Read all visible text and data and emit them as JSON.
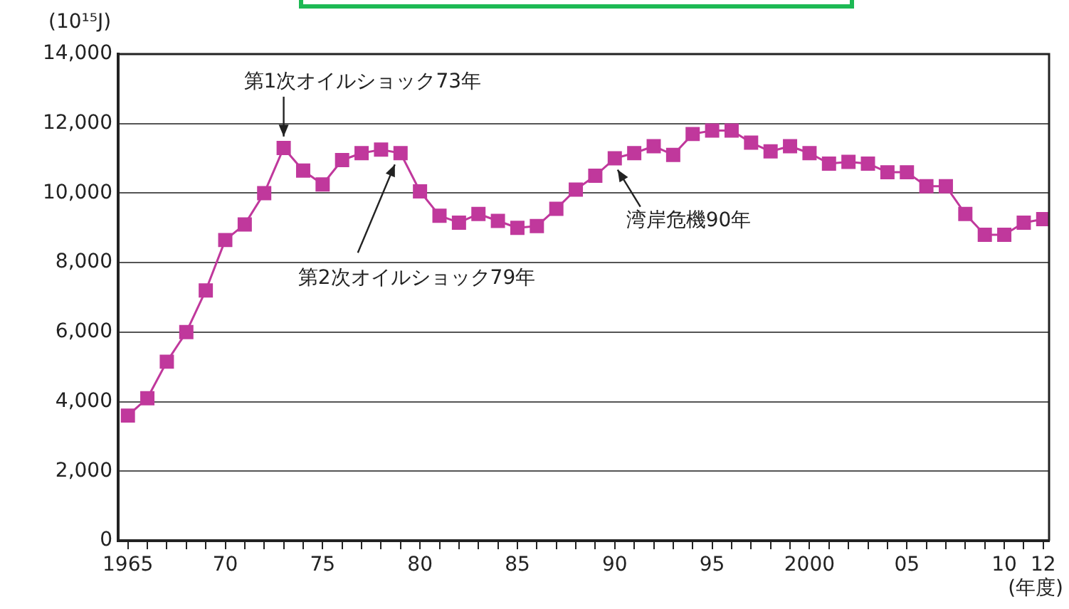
{
  "chart_data": {
    "type": "line",
    "ylabel": "(10¹⁵J)",
    "xlabel": "(年度)",
    "x": [
      1965,
      1966,
      1967,
      1968,
      1969,
      1970,
      1971,
      1972,
      1973,
      1974,
      1975,
      1976,
      1977,
      1978,
      1979,
      1980,
      1981,
      1982,
      1983,
      1984,
      1985,
      1986,
      1987,
      1988,
      1989,
      1990,
      1991,
      1992,
      1993,
      1994,
      1995,
      1996,
      1997,
      1998,
      1999,
      2000,
      2001,
      2002,
      2003,
      2004,
      2005,
      2006,
      2007,
      2008,
      2009,
      2010,
      2011,
      2012
    ],
    "series": [
      {
        "color": "#c0389c",
        "values": [
          3600,
          4100,
          5150,
          6000,
          7200,
          8650,
          9100,
          10000,
          11300,
          10650,
          10250,
          10950,
          11150,
          11250,
          11150,
          10050,
          9350,
          9150,
          9400,
          9200,
          9000,
          9050,
          9550,
          10100,
          10500,
          11000,
          11150,
          11350,
          11100,
          11700,
          11800,
          11800,
          11450,
          11200,
          11350,
          11150,
          10850,
          10900,
          10850,
          10600,
          10600,
          10200,
          10200,
          9400,
          8800,
          8800,
          9150,
          9250
        ]
      }
    ],
    "xlim": [
      1964.5,
      2012.3
    ],
    "xticks": [
      {
        "value": 1965,
        "label": "1965"
      },
      {
        "value": 1966,
        "label": null
      },
      {
        "value": 1967,
        "label": null
      },
      {
        "value": 1968,
        "label": null
      },
      {
        "value": 1969,
        "label": null
      },
      {
        "value": 1970,
        "label": "70"
      },
      {
        "value": 1971,
        "label": null
      },
      {
        "value": 1972,
        "label": null
      },
      {
        "value": 1973,
        "label": null
      },
      {
        "value": 1974,
        "label": null
      },
      {
        "value": 1975,
        "label": "75"
      },
      {
        "value": 1976,
        "label": null
      },
      {
        "value": 1977,
        "label": null
      },
      {
        "value": 1978,
        "label": null
      },
      {
        "value": 1979,
        "label": null
      },
      {
        "value": 1980,
        "label": "80"
      },
      {
        "value": 1981,
        "label": null
      },
      {
        "value": 1982,
        "label": null
      },
      {
        "value": 1983,
        "label": null
      },
      {
        "value": 1984,
        "label": null
      },
      {
        "value": 1985,
        "label": "85"
      },
      {
        "value": 1986,
        "label": null
      },
      {
        "value": 1987,
        "label": null
      },
      {
        "value": 1988,
        "label": null
      },
      {
        "value": 1989,
        "label": null
      },
      {
        "value": 1990,
        "label": "90"
      },
      {
        "value": 1991,
        "label": null
      },
      {
        "value": 1992,
        "label": null
      },
      {
        "value": 1993,
        "label": null
      },
      {
        "value": 1994,
        "label": null
      },
      {
        "value": 1995,
        "label": "95"
      },
      {
        "value": 1996,
        "label": null
      },
      {
        "value": 1997,
        "label": null
      },
      {
        "value": 1998,
        "label": null
      },
      {
        "value": 1999,
        "label": null
      },
      {
        "value": 2000,
        "label": "2000"
      },
      {
        "value": 2001,
        "label": null
      },
      {
        "value": 2002,
        "label": null
      },
      {
        "value": 2003,
        "label": null
      },
      {
        "value": 2004,
        "label": null
      },
      {
        "value": 2005,
        "label": "05"
      },
      {
        "value": 2006,
        "label": null
      },
      {
        "value": 2007,
        "label": null
      },
      {
        "value": 2008,
        "label": null
      },
      {
        "value": 2009,
        "label": null
      },
      {
        "value": 2010,
        "label": "10"
      },
      {
        "value": 2011,
        "label": null
      },
      {
        "value": 2012,
        "label": "12"
      }
    ],
    "ylim": [
      0,
      14000
    ],
    "yticks": [
      0,
      {
        "value": 2000,
        "label": "2,000"
      },
      {
        "value": 4000,
        "label": "4,000"
      },
      {
        "value": 6000,
        "label": "6,000"
      },
      {
        "value": 8000,
        "label": "8,000"
      },
      {
        "value": 10000,
        "label": "10,000"
      },
      {
        "value": 12000,
        "label": "12,000"
      },
      {
        "value": 14000,
        "label": "14,000"
      }
    ],
    "grid": "y",
    "legend": false,
    "marker": "square",
    "line_style": "solid",
    "annotations": [
      {
        "text": "第1次オイルショック73年",
        "x": 1973,
        "y": 11300
      },
      {
        "text": "第2次オイルショック79年",
        "x": 1979,
        "y": 11150
      },
      {
        "text": "湾岸危機90年",
        "x": 1990,
        "y": 11000
      }
    ]
  }
}
